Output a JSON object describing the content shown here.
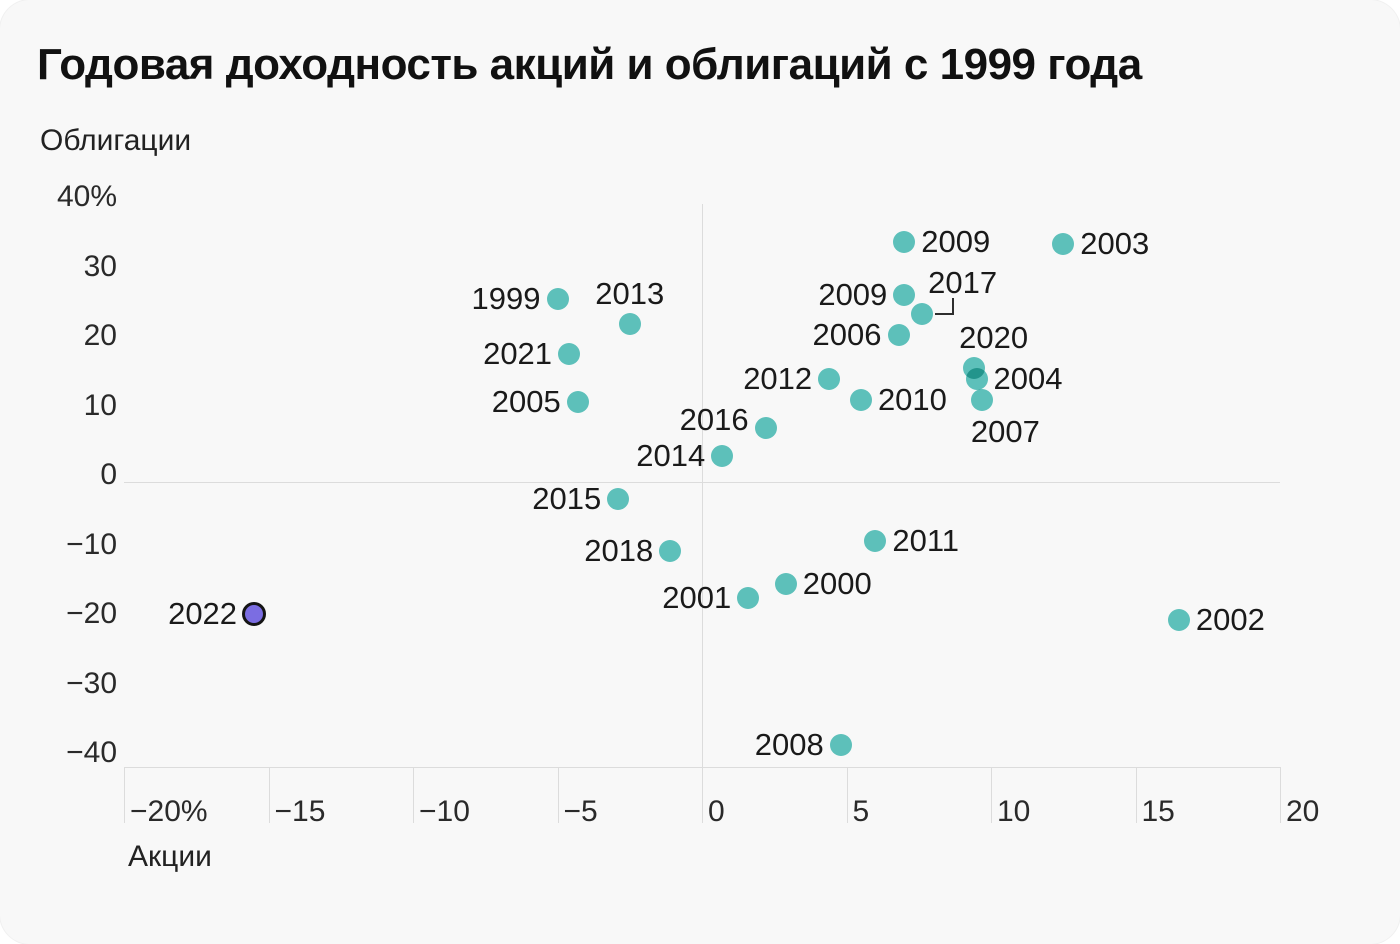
{
  "title": "Годовая доходность акций и облигаций с 1999 года",
  "colors": {
    "card_background": "#f8f8f8",
    "dot_teal": "#5fc6c0",
    "dot_2022_fill": "#7b6de2",
    "dot_2022_stroke": "#151515",
    "gridline": "#dcdcdc",
    "text": "#1a1a1a"
  },
  "y_axis": {
    "name": "Облигации",
    "ticks": [
      {
        "label": "40%",
        "value": 40
      },
      {
        "label": "30",
        "value": 30
      },
      {
        "label": "20",
        "value": 20
      },
      {
        "label": "10",
        "value": 10
      },
      {
        "label": "0",
        "value": 0
      },
      {
        "label": "−10",
        "value": -10
      },
      {
        "label": "−20",
        "value": -20
      },
      {
        "label": "−30",
        "value": -30
      },
      {
        "label": "−40",
        "value": -40
      }
    ]
  },
  "x_axis": {
    "name": "Акции",
    "ticks": [
      {
        "label": "−20%",
        "value": -20
      },
      {
        "label": "−15",
        "value": -15
      },
      {
        "label": "−10",
        "value": -10
      },
      {
        "label": "−5",
        "value": -5
      },
      {
        "label": "0",
        "value": 0
      },
      {
        "label": "5",
        "value": 5
      },
      {
        "label": "10",
        "value": 10
      },
      {
        "label": "15",
        "value": 15
      },
      {
        "label": "20",
        "value": 20
      }
    ]
  },
  "chart_data": {
    "type": "scatter",
    "title": "Годовая доходность акций и облигаций с 1999 года",
    "xlabel": "Акции",
    "ylabel": "Облигации",
    "x_unit": "%",
    "y_unit": "%",
    "xlim": [
      -20,
      20
    ],
    "ylim": [
      -40,
      40
    ],
    "grid": "zero-lines-only",
    "legend": "none",
    "points": [
      {
        "year": "1999",
        "stocks": -5.0,
        "bonds": 26.3,
        "label_side": "left"
      },
      {
        "year": "2000",
        "stocks": 2.9,
        "bonds": -14.7,
        "label_side": "right"
      },
      {
        "year": "2001",
        "stocks": 1.6,
        "bonds": -16.7,
        "label_side": "left"
      },
      {
        "year": "2002",
        "stocks": 16.5,
        "bonds": -19.9,
        "label_side": "right"
      },
      {
        "year": "2003",
        "stocks": 12.5,
        "bonds": 34.2,
        "label_side": "right"
      },
      {
        "year": "2004",
        "stocks": 9.5,
        "bonds": 14.8,
        "label_side": "right"
      },
      {
        "year": "2005",
        "stocks": -4.3,
        "bonds": 11.5,
        "label_side": "left"
      },
      {
        "year": "2006",
        "stocks": 6.8,
        "bonds": 21.2,
        "label_side": "left"
      },
      {
        "year": "2007",
        "stocks": 9.7,
        "bonds": 11.8,
        "label_side": "below",
        "dx": 23
      },
      {
        "year": "2008",
        "stocks": 4.8,
        "bonds": -37.8,
        "label_side": "left"
      },
      {
        "year": "2009",
        "stocks": 7.0,
        "bonds": 34.5,
        "label_side": "right"
      },
      {
        "year": "2009",
        "stocks": 7.0,
        "bonds": 26.9,
        "label_side": "left"
      },
      {
        "year": "2010",
        "stocks": 5.5,
        "bonds": 11.8,
        "label_side": "right"
      },
      {
        "year": "2011",
        "stocks": 6.0,
        "bonds": -8.5,
        "label_side": "right"
      },
      {
        "year": "2012",
        "stocks": 4.4,
        "bonds": 14.8,
        "label_side": "left"
      },
      {
        "year": "2013",
        "stocks": -2.5,
        "bonds": 22.7,
        "label_side": "above"
      },
      {
        "year": "2014",
        "stocks": 0.7,
        "bonds": 3.7,
        "label_side": "left"
      },
      {
        "year": "2015",
        "stocks": -2.9,
        "bonds": -2.4,
        "label_side": "left"
      },
      {
        "year": "2016",
        "stocks": 2.2,
        "bonds": 7.8,
        "label_side": "left",
        "dy": -8
      },
      {
        "year": "2017",
        "stocks": 7.6,
        "bonds": 24.2,
        "label_side": "callout"
      },
      {
        "year": "2018",
        "stocks": -1.1,
        "bonds": -9.9,
        "label_side": "left"
      },
      {
        "year": "2020",
        "stocks": 9.4,
        "bonds": 16.4,
        "label_side": "above",
        "dx": 20
      },
      {
        "year": "2021",
        "stocks": -4.6,
        "bonds": 18.4,
        "label_side": "left"
      },
      {
        "year": "2022",
        "stocks": -15.5,
        "bonds": -19.0,
        "label_side": "left",
        "highlight": true
      }
    ]
  }
}
